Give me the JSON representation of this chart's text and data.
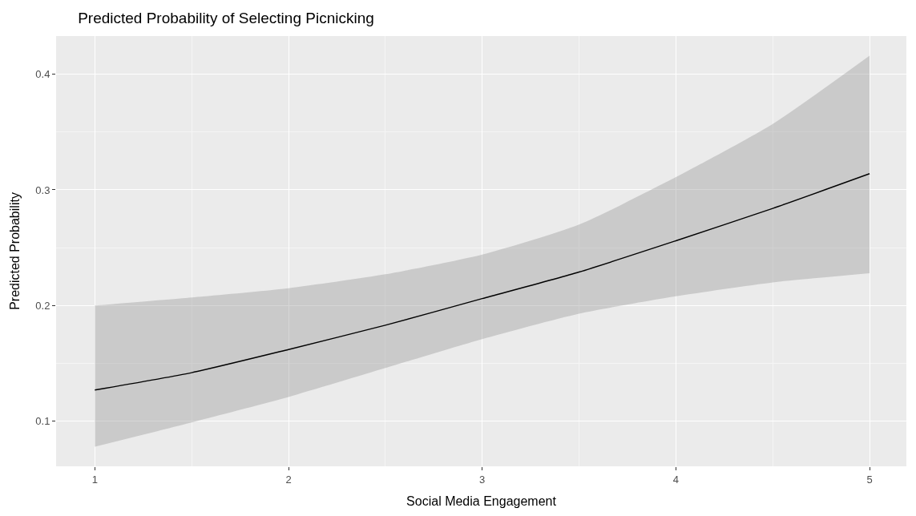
{
  "chart_data": {
    "type": "line",
    "title": "Predicted Probability of Selecting Picnicking",
    "xlabel": "Social Media Engagement",
    "ylabel": "Predicted Probability",
    "x": [
      1,
      1.5,
      2,
      2.5,
      3,
      3.5,
      4,
      4.5,
      5
    ],
    "series": [
      {
        "color": "#000000",
        "values": [
          0.127,
          0.142,
          0.162,
          0.183,
          0.206,
          0.229,
          0.256,
          0.284,
          0.314
        ],
        "lower": [
          0.078,
          0.099,
          0.121,
          0.146,
          0.171,
          0.193,
          0.208,
          0.22,
          0.228
        ],
        "upper": [
          0.2,
          0.207,
          0.215,
          0.227,
          0.244,
          0.27,
          0.311,
          0.357,
          0.416
        ]
      }
    ],
    "xlim": [
      0.8,
      5.19
    ],
    "ylim": [
      0.061,
      0.433
    ],
    "xticks": [
      1,
      2,
      3,
      4,
      5
    ],
    "yticks": [
      0.1,
      0.2,
      0.3,
      0.4
    ],
    "grid": true,
    "line_style": "solid"
  }
}
